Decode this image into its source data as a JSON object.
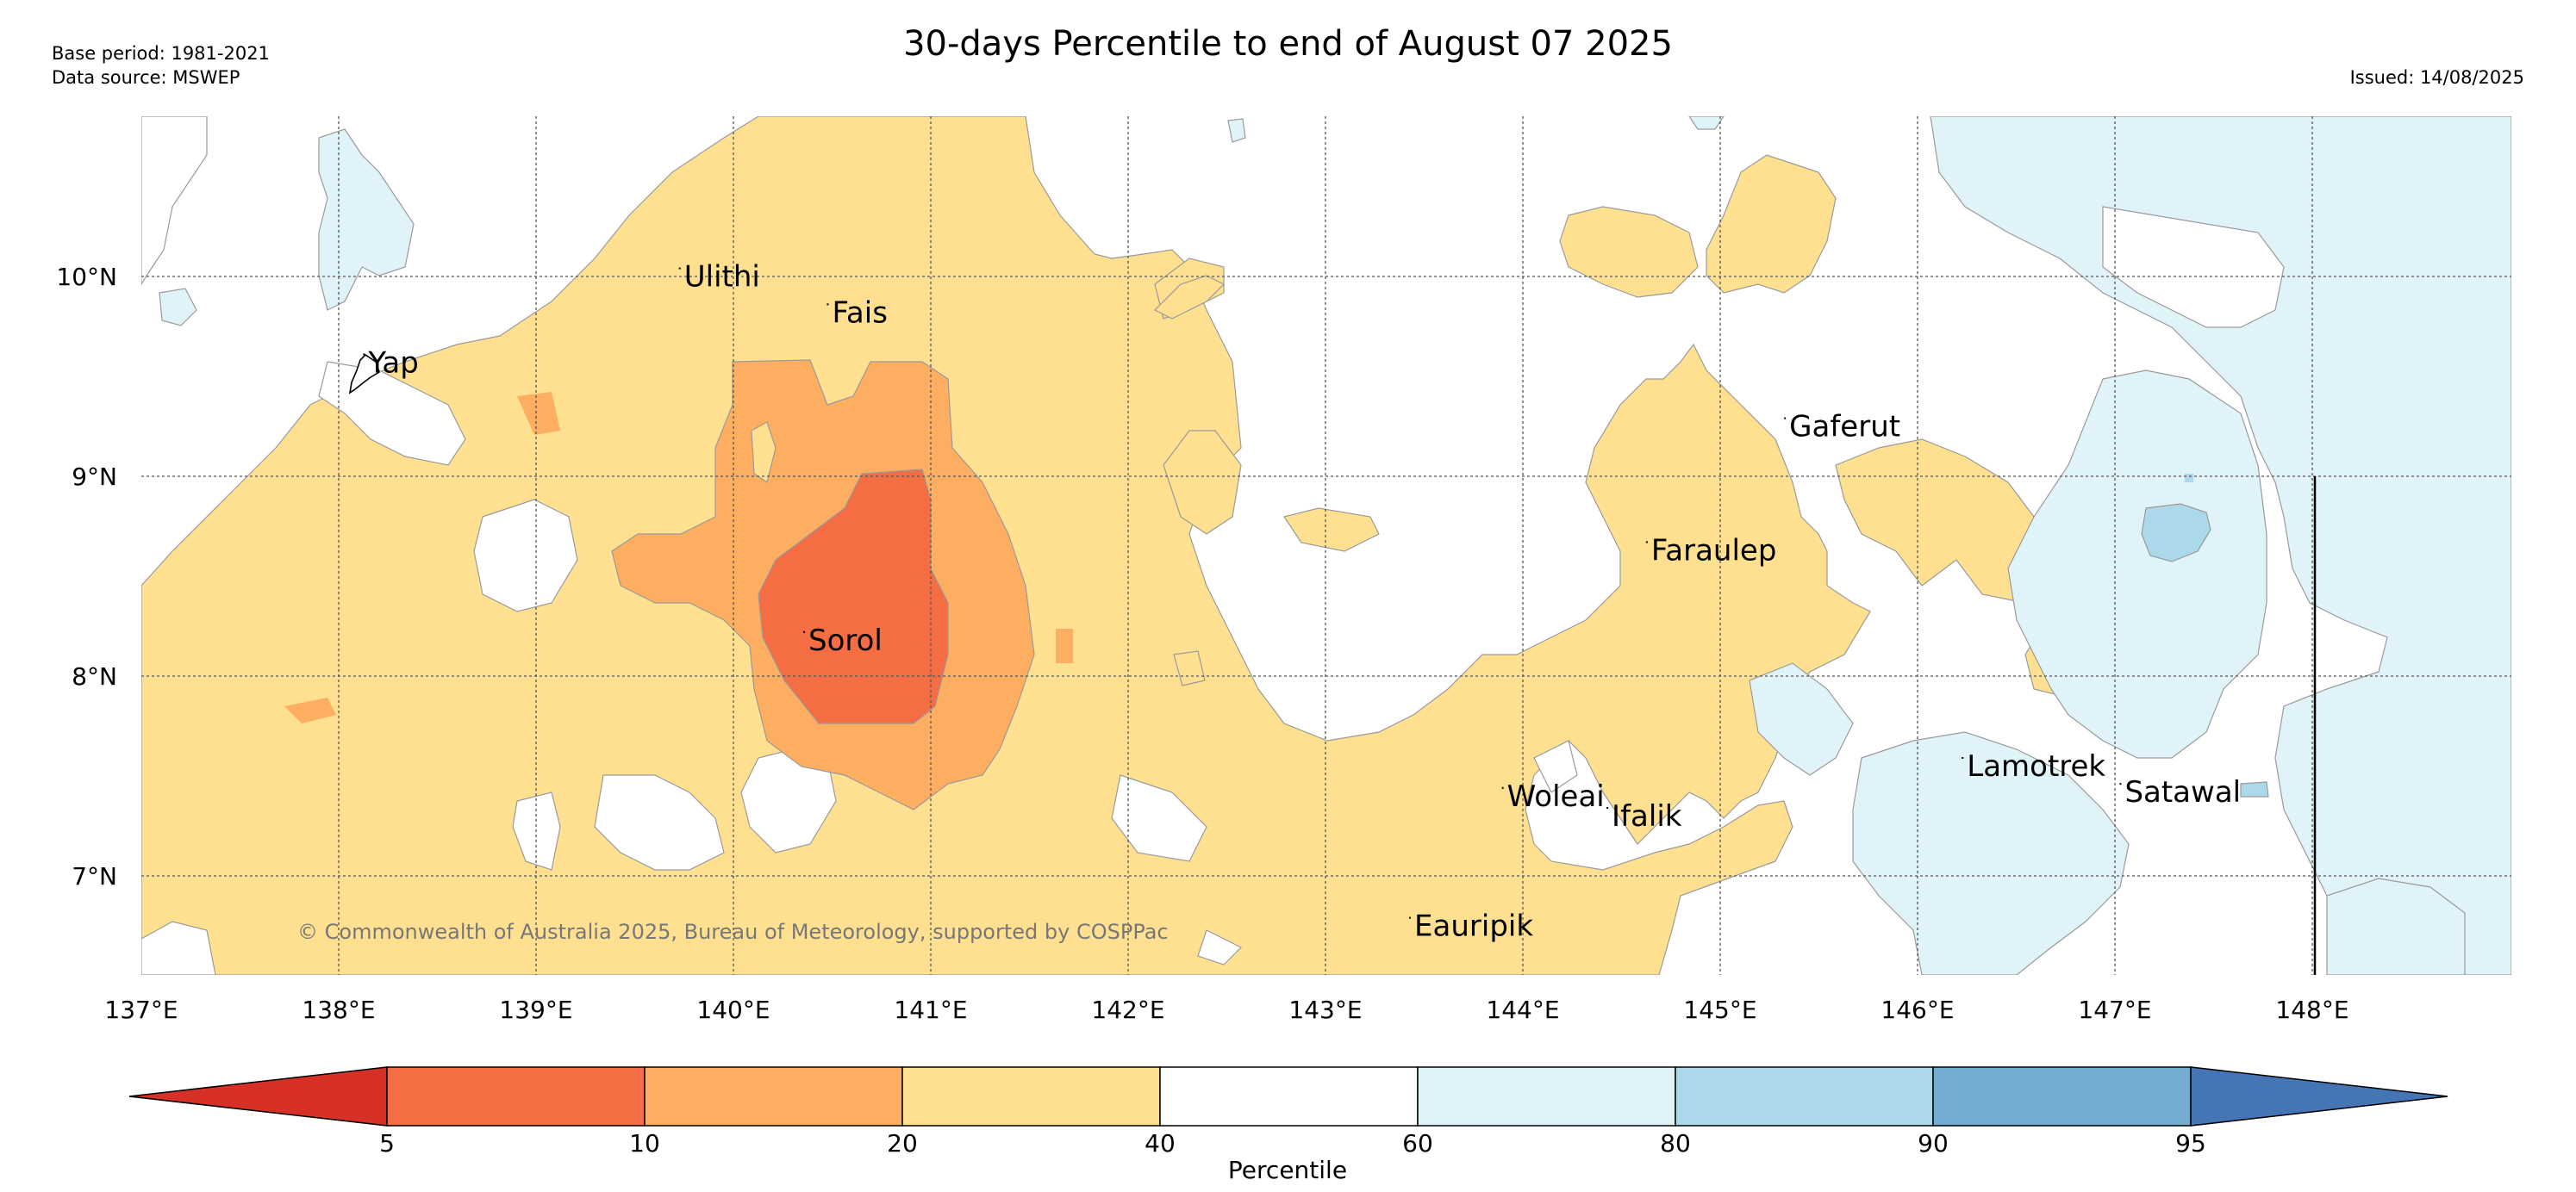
{
  "header": {
    "base_period": "Base period: 1981-2021",
    "data_source": "Data source: MSWEP",
    "title": "30-days Percentile to end of August 07 2025",
    "issued": "Issued: 14/08/2025"
  },
  "map": {
    "lon_range": [
      137,
      149
    ],
    "lat_range": [
      6.5,
      10.8
    ],
    "lon_labels": [
      "137°E",
      "138°E",
      "139°E",
      "140°E",
      "141°E",
      "142°E",
      "143°E",
      "144°E",
      "145°E",
      "146°E",
      "147°E",
      "148°E"
    ],
    "lat_labels": [
      "10°N",
      "9°N",
      "8°N",
      "7°N"
    ],
    "places": [
      {
        "name": "Ulithi",
        "lon": 139.75,
        "lat": 9.95
      },
      {
        "name": "Fais",
        "lon": 140.5,
        "lat": 9.77
      },
      {
        "name": "Yap",
        "lon": 138.15,
        "lat": 9.52
      },
      {
        "name": "Gaferut",
        "lon": 145.35,
        "lat": 9.2
      },
      {
        "name": "Faraulep",
        "lon": 144.65,
        "lat": 8.58
      },
      {
        "name": "Sorol",
        "lon": 140.38,
        "lat": 8.13
      },
      {
        "name": "Woleai",
        "lon": 143.92,
        "lat": 7.35
      },
      {
        "name": "Ifalik",
        "lon": 144.45,
        "lat": 7.25
      },
      {
        "name": "Lamotrek",
        "lon": 146.25,
        "lat": 7.5
      },
      {
        "name": "Satawal",
        "lon": 147.05,
        "lat": 7.37
      },
      {
        "name": "Eauripik",
        "lon": 143.45,
        "lat": 6.7
      }
    ],
    "copyright": "© Commonwealth of Australia 2025, Bureau of Meteorology, supported by COSPPac"
  },
  "legend": {
    "title": "Percentile",
    "ticks": [
      "5",
      "10",
      "20",
      "40",
      "60",
      "80",
      "90",
      "95"
    ],
    "colors": [
      "#d73027",
      "#f46d43",
      "#fdae61",
      "#fee090",
      "#ffffff",
      "#e0f3f8",
      "#abd9e9",
      "#74add1",
      "#4575b4"
    ]
  }
}
